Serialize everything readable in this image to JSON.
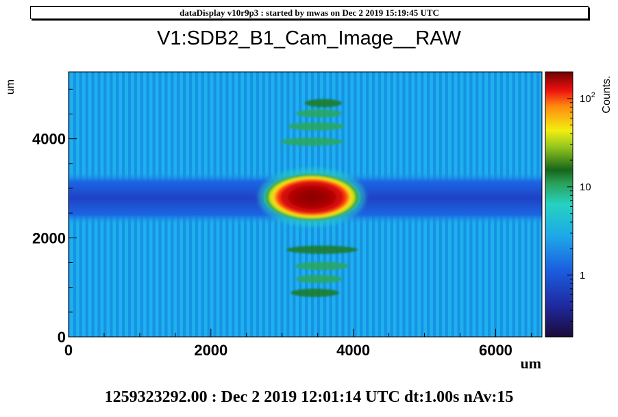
{
  "banner": "dataDisplay v10r9p3 : started by mwas on Dec  2 2019 15:19:45 UTC",
  "footer": "1259323292.00 : Dec  2 2019 12:01:14 UTC dt:1.00s nAv:15",
  "chart_data": {
    "type": "heatmap",
    "title": "V1:SDB2_B1_Cam_Image__RAW",
    "xlabel": "um",
    "ylabel": "um",
    "zlabel": "Counts.",
    "xlim": [
      0,
      6650
    ],
    "ylim": [
      0,
      5350
    ],
    "zlim": [
      0.2,
      200
    ],
    "z_scale": "log",
    "x_ticks": [
      0,
      2000,
      4000,
      6000
    ],
    "x_tick_labels": [
      "0",
      "2000",
      "4000",
      "6000"
    ],
    "y_ticks": [
      0,
      2000,
      4000
    ],
    "y_tick_labels": [
      "0",
      "2000",
      "4000"
    ],
    "z_tick_labels": [
      "1",
      "10",
      "10²"
    ],
    "z_tick_values": [
      1,
      10,
      100
    ],
    "features": {
      "background_counts": 1.6,
      "horizontal_band": {
        "y_center": 2800,
        "y_half_width": 420,
        "counts": 0.8
      },
      "spot": {
        "x_center": 3420,
        "y_center": 2820,
        "x_radius": 680,
        "y_radius": 480,
        "peak_counts": 200,
        "edge_counts": 3
      },
      "fringes": [
        {
          "x_center": 3580,
          "y_center": 4720,
          "half_width": 260,
          "counts": 8
        },
        {
          "x_center": 3520,
          "y_center": 4510,
          "half_width": 320,
          "counts": 4
        },
        {
          "x_center": 3480,
          "y_center": 4250,
          "half_width": 400,
          "counts": 4
        },
        {
          "x_center": 3420,
          "y_center": 3940,
          "half_width": 440,
          "counts": 5
        },
        {
          "x_center": 3560,
          "y_center": 1760,
          "half_width": 500,
          "counts": 7
        },
        {
          "x_center": 3560,
          "y_center": 1430,
          "half_width": 380,
          "counts": 5
        },
        {
          "x_center": 3520,
          "y_center": 1170,
          "half_width": 330,
          "counts": 4
        },
        {
          "x_center": 3460,
          "y_center": 890,
          "half_width": 340,
          "counts": 9
        }
      ]
    }
  }
}
